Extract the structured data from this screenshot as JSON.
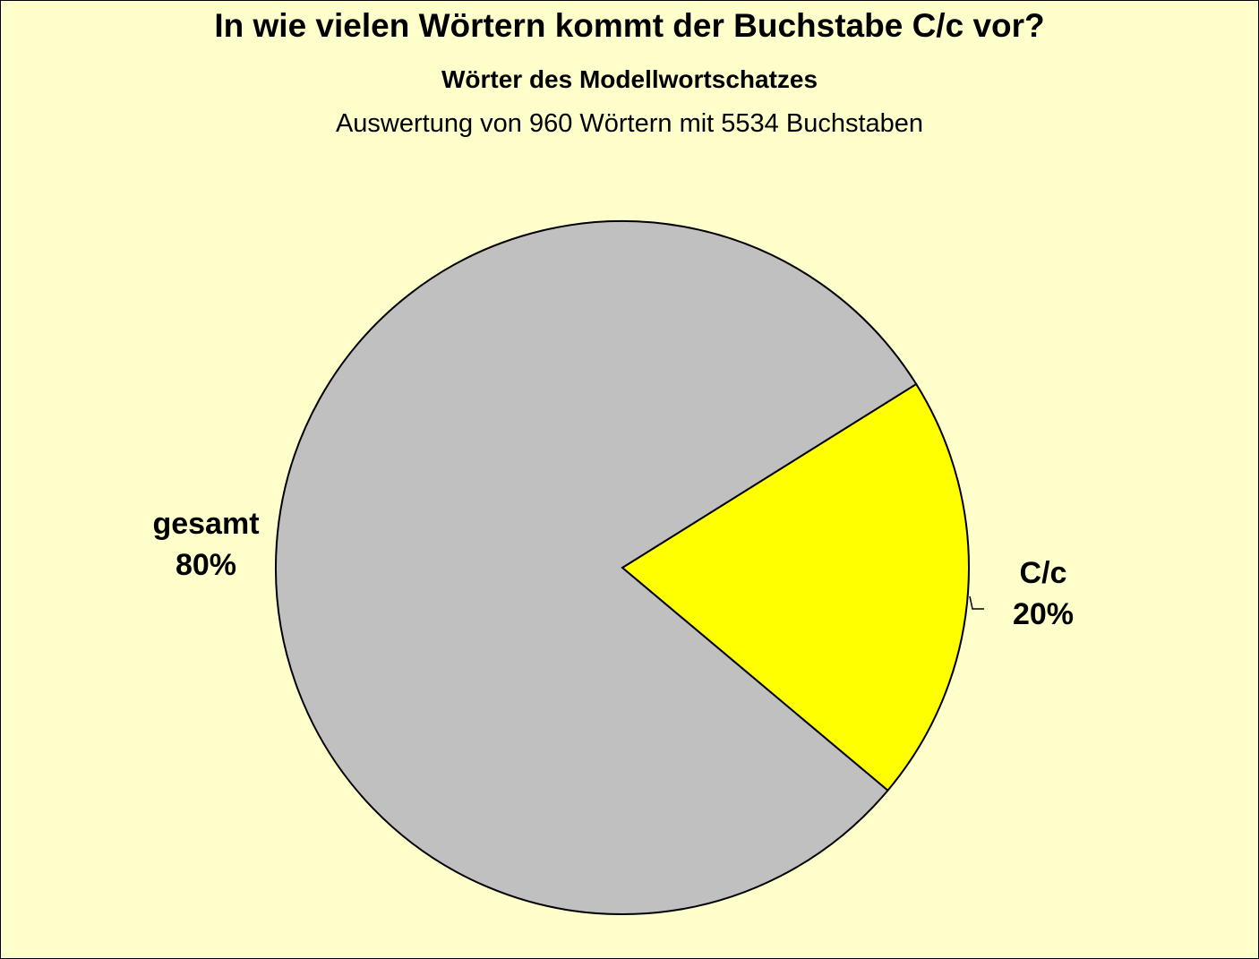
{
  "chart_data": {
    "type": "pie",
    "title": "In wie vielen Wörtern kommt der Buchstabe C/c vor?",
    "subtitle": "Wörter des Modellwortschatzes",
    "subtitle2": "Auswertung von 960 Wörtern mit 5534 Buchstaben",
    "slices": [
      {
        "label": "C/c",
        "value": 20,
        "value_label": "20%",
        "color": "#ffff00"
      },
      {
        "label": "gesamt",
        "value": 80,
        "value_label": "80%",
        "color": "#c0c0c0"
      }
    ],
    "background": "#ffffcc",
    "legend": "none"
  }
}
